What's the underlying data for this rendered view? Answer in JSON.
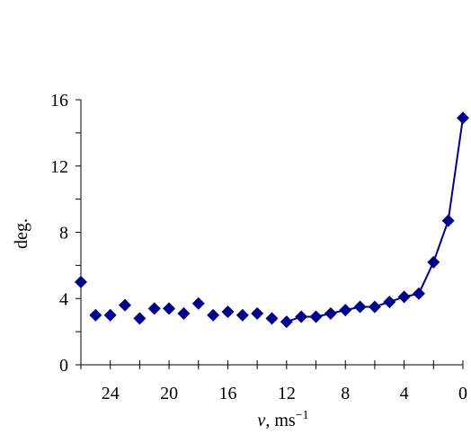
{
  "chart_data": {
    "type": "scatter",
    "xlabel_var": "v",
    "xlabel_unit": ", ms",
    "xlabel_sup": "−1",
    "ylabel": "deg.",
    "xlim": [
      26,
      0
    ],
    "ylim": [
      0,
      16
    ],
    "x_ticks": [
      24,
      20,
      16,
      12,
      8,
      4,
      0
    ],
    "x_minor_step": 2,
    "y_ticks": [
      0,
      4,
      8,
      12,
      16
    ],
    "y_minor_step": 2,
    "grid": false,
    "legend": "none",
    "series": [
      {
        "color": "#00008b",
        "marker": "diamond",
        "line_connected_from_x": 12,
        "points": [
          {
            "x": 26,
            "y": 5.0
          },
          {
            "x": 25,
            "y": 3.0
          },
          {
            "x": 24,
            "y": 3.0
          },
          {
            "x": 23,
            "y": 3.6
          },
          {
            "x": 22,
            "y": 2.8
          },
          {
            "x": 21,
            "y": 3.4
          },
          {
            "x": 20,
            "y": 3.4
          },
          {
            "x": 19,
            "y": 3.1
          },
          {
            "x": 18,
            "y": 3.7
          },
          {
            "x": 17,
            "y": 3.0
          },
          {
            "x": 16,
            "y": 3.2
          },
          {
            "x": 15,
            "y": 3.0
          },
          {
            "x": 14,
            "y": 3.1
          },
          {
            "x": 13,
            "y": 2.8
          },
          {
            "x": 12,
            "y": 2.6
          },
          {
            "x": 11,
            "y": 2.9
          },
          {
            "x": 10,
            "y": 2.9
          },
          {
            "x": 9,
            "y": 3.1
          },
          {
            "x": 8,
            "y": 3.3
          },
          {
            "x": 7,
            "y": 3.5
          },
          {
            "x": 6,
            "y": 3.5
          },
          {
            "x": 5,
            "y": 3.8
          },
          {
            "x": 4,
            "y": 4.1
          },
          {
            "x": 3,
            "y": 4.3
          },
          {
            "x": 2,
            "y": 6.2
          },
          {
            "x": 1,
            "y": 8.7
          },
          {
            "x": 0,
            "y": 14.9
          }
        ]
      }
    ]
  }
}
